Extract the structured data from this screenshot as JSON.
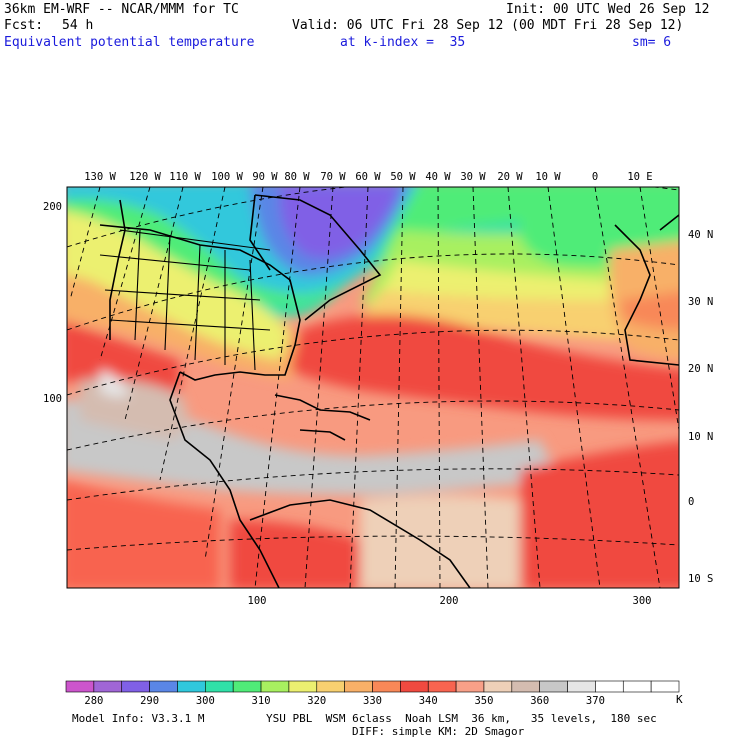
{
  "header": {
    "model": "36km EM-WRF -- NCAR/MMM for TC",
    "init": "Init: 00 UTC Wed 26 Sep 12",
    "fcst_label": "Fcst:",
    "fcst_value": "54 h",
    "valid": "Valid: 06 UTC Fri 28 Sep 12 (00 MDT Fri 28 Sep 12)",
    "field": "Equivalent potential temperature",
    "level": "at k-index =  35",
    "smoothing": "sm= 6"
  },
  "map": {
    "lon_labels": [
      "130 W",
      "120 W",
      "110 W",
      "100 W",
      "90 W",
      "80 W",
      "70 W",
      "60 W",
      "50 W",
      "40 W",
      "30 W",
      "20 W",
      "10 W",
      "0",
      "10 E"
    ],
    "lat_labels": [
      "40 N",
      "30 N",
      "20 N",
      "10 N",
      "0",
      "10 S"
    ],
    "grid_y_labels": [
      "200",
      "100"
    ],
    "grid_x_labels": [
      "100",
      "200",
      "300"
    ]
  },
  "colorbar": {
    "colors": [
      "#cc55cc",
      "#a066d6",
      "#8060e6",
      "#5a86e6",
      "#30c8dc",
      "#30e0a8",
      "#50ec78",
      "#a8f060",
      "#ecf070",
      "#f8d070",
      "#f8b068",
      "#f88858",
      "#f04a40",
      "#f86450",
      "#f8a088",
      "#eed0b8",
      "#d4bcb0",
      "#c8c8c8",
      "#e6e6e6",
      "#ffffff",
      "#ffffff",
      "#ffffff"
    ],
    "tick_labels": [
      "280",
      "290",
      "300",
      "310",
      "320",
      "330",
      "340",
      "350",
      "360",
      "370"
    ],
    "unit": "K"
  },
  "footer": {
    "model_info": "Model Info: V3.3.1 M",
    "physics": "YSU PBL  WSM 6class  Noah LSM  36 km,   35 levels,  180 sec",
    "diffusion": "DIFF: simple KM: 2D Smagor"
  }
}
